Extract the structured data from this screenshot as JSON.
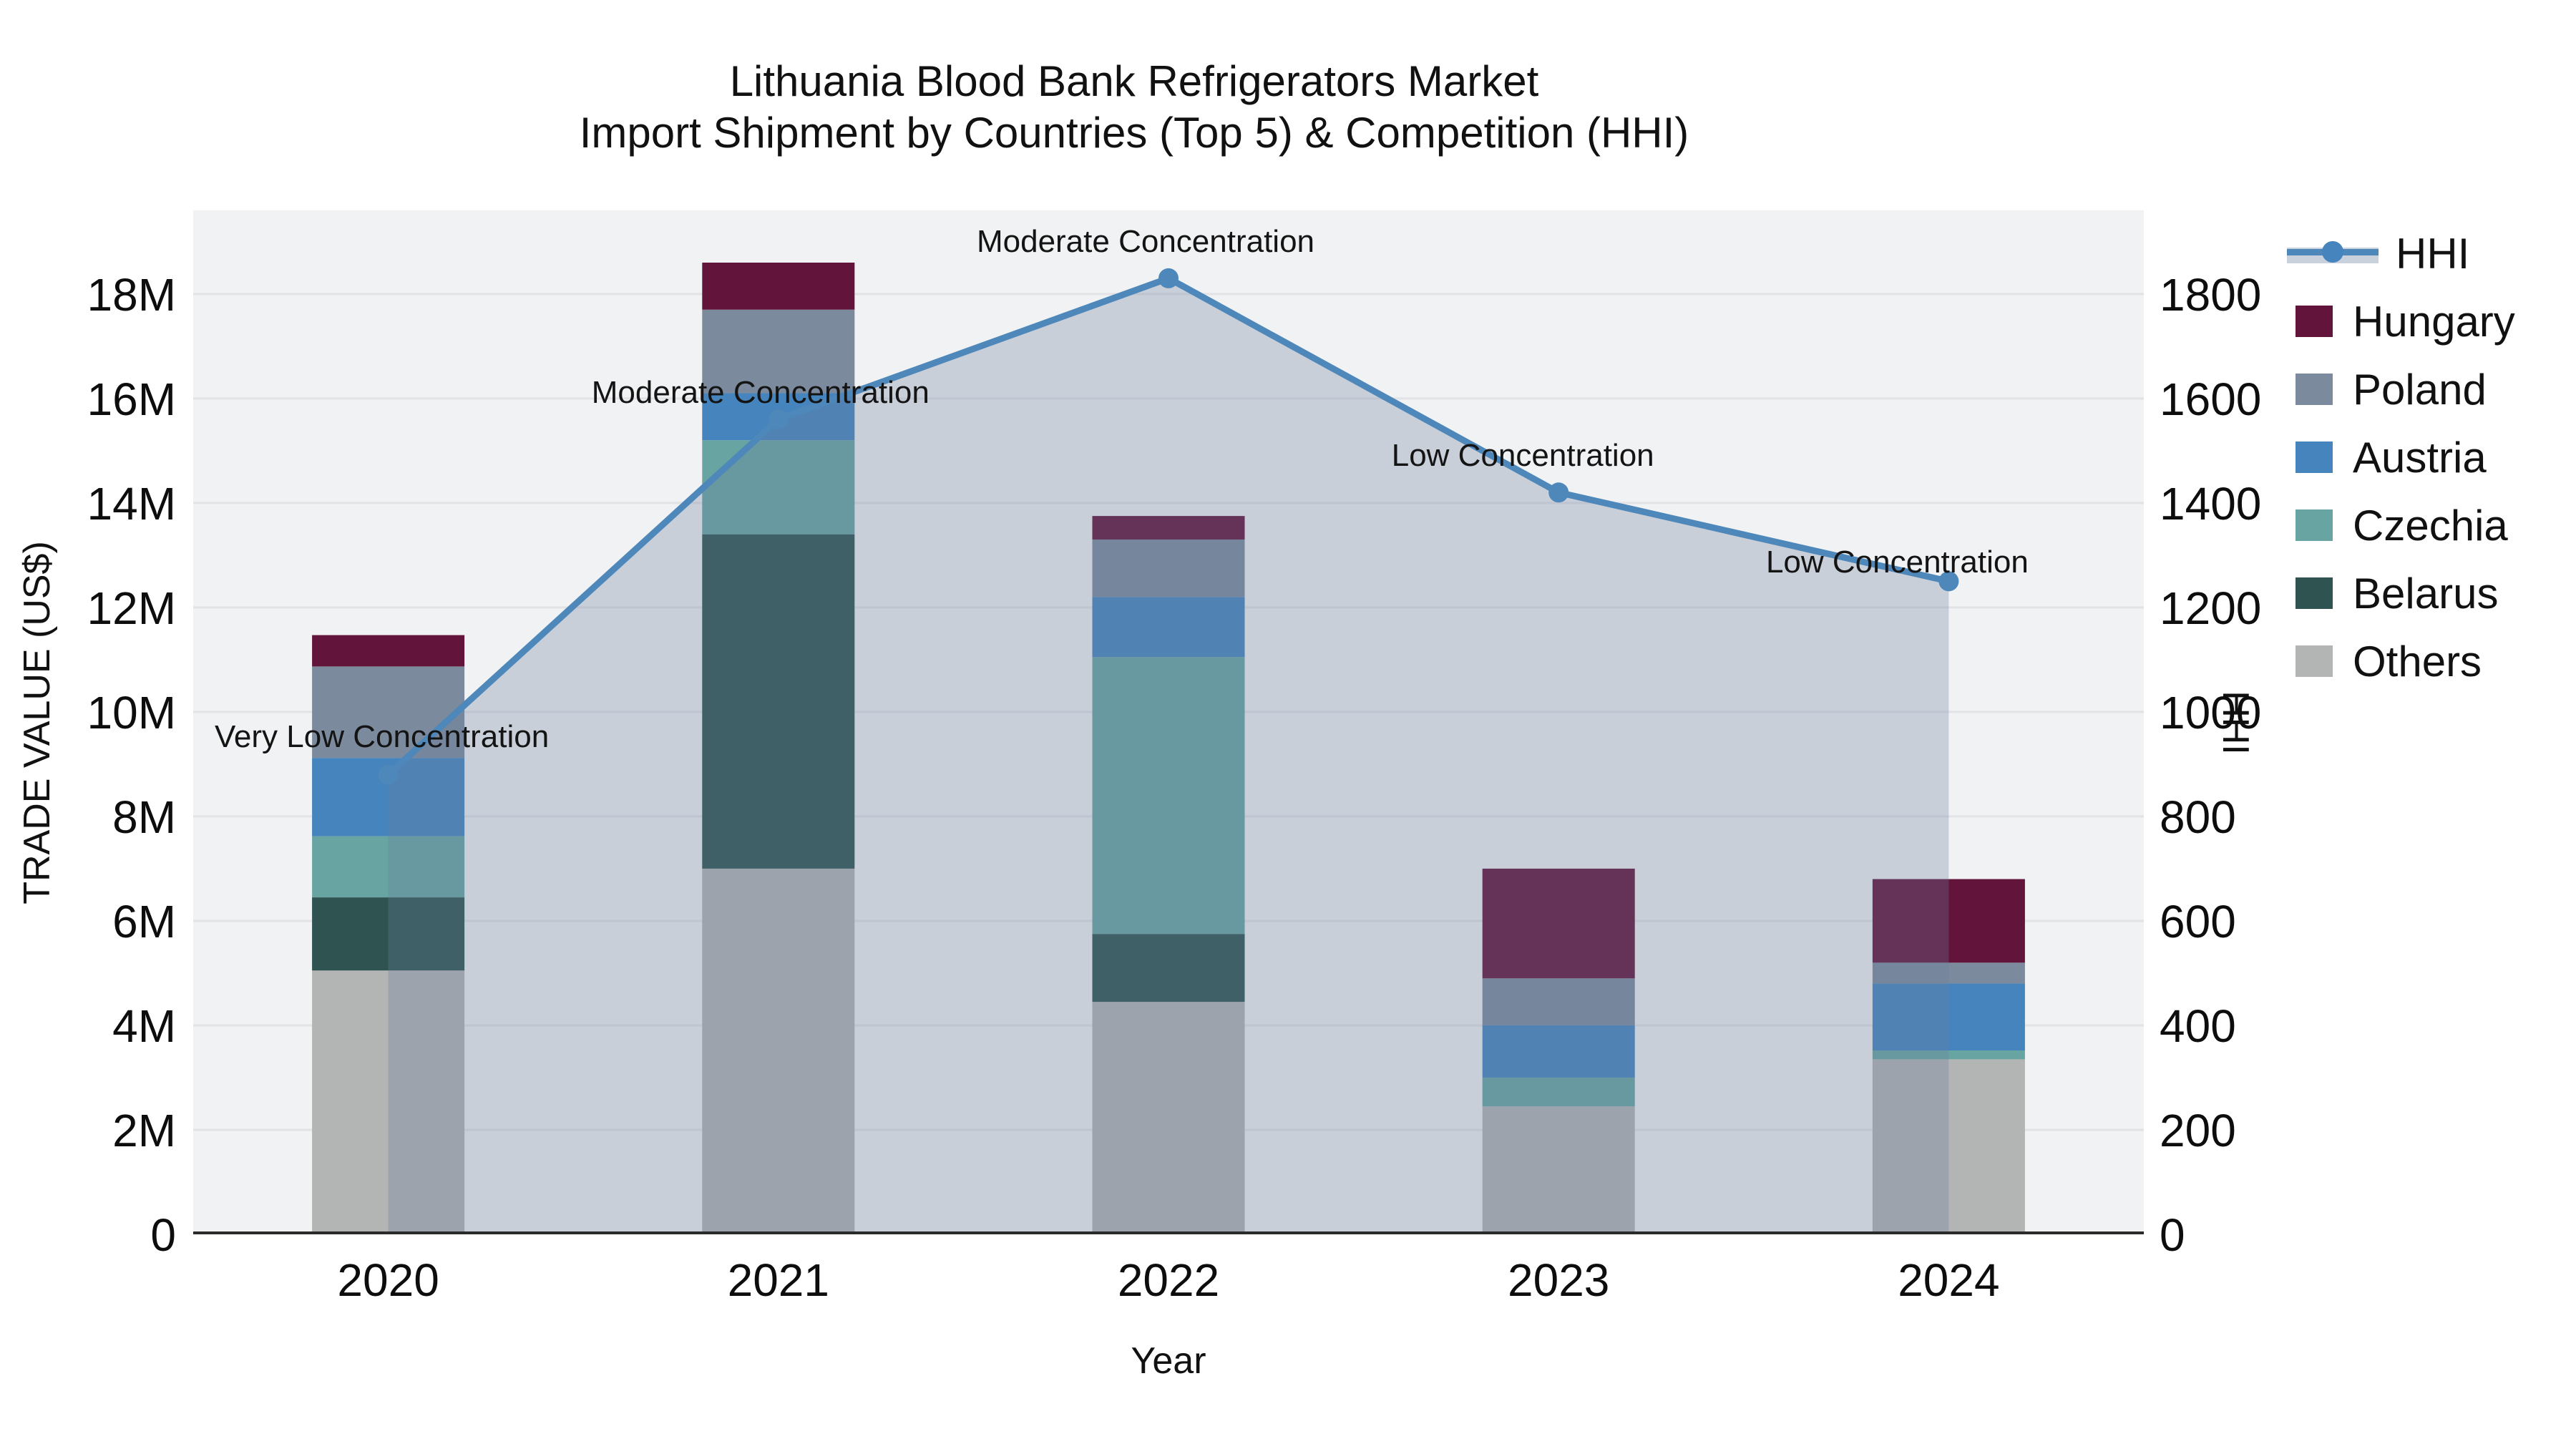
{
  "title": {
    "line1": "Lithuania Blood Bank Refrigerators Market",
    "line2": "Import Shipment by Countries (Top 5) & Competition (HHI)"
  },
  "axes": {
    "left": {
      "title": "TRADE VALUE (US$)",
      "tick_labels": [
        "0",
        "2M",
        "4M",
        "6M",
        "8M",
        "10M",
        "12M",
        "14M",
        "16M",
        "18M"
      ]
    },
    "right": {
      "title": "HHI",
      "tick_labels": [
        "0",
        "200",
        "400",
        "600",
        "800",
        "1000",
        "1200",
        "1400",
        "1600",
        "1800"
      ]
    },
    "x": {
      "title": "Year",
      "tick_labels": [
        "2020",
        "2021",
        "2022",
        "2023",
        "2024"
      ]
    }
  },
  "legend": {
    "items": [
      {
        "label": "HHI",
        "type": "line",
        "color": "#4E87BA"
      },
      {
        "label": "Hungary",
        "type": "box",
        "color": "#63143A"
      },
      {
        "label": "Poland",
        "type": "box",
        "color": "#7B8A9C"
      },
      {
        "label": "Austria",
        "type": "box",
        "color": "#4584BC"
      },
      {
        "label": "Czechia",
        "type": "box",
        "color": "#68A4A1"
      },
      {
        "label": "Belarus",
        "type": "box",
        "color": "#2E5351"
      },
      {
        "label": "Others",
        "type": "box",
        "color": "#B3B4B4"
      }
    ]
  },
  "chart_data": {
    "type": "combo: stacked-bar (left axis) + line-area (right axis)",
    "x": [
      2020,
      2021,
      2022,
      2023,
      2024
    ],
    "bar_value_unit": "US$ million",
    "stack_order_bottom_to_top": [
      "Others",
      "Belarus",
      "Czechia",
      "Austria",
      "Poland",
      "Hungary"
    ],
    "series": [
      {
        "name": "Others",
        "color": "#B3B4B4",
        "values": [
          5.05,
          7.0,
          4.45,
          2.45,
          3.35
        ]
      },
      {
        "name": "Belarus",
        "color": "#2E5351",
        "values": [
          1.4,
          6.4,
          1.3,
          0.0,
          0.0
        ]
      },
      {
        "name": "Czechia",
        "color": "#68A4A1",
        "values": [
          1.17,
          1.8,
          5.3,
          0.55,
          0.17
        ]
      },
      {
        "name": "Austria",
        "color": "#4584BC",
        "values": [
          1.5,
          0.9,
          1.15,
          1.0,
          1.28
        ]
      },
      {
        "name": "Poland",
        "color": "#7B8A9C",
        "values": [
          1.75,
          1.6,
          1.1,
          0.9,
          0.4
        ]
      },
      {
        "name": "Hungary",
        "color": "#63143A",
        "values": [
          0.6,
          0.9,
          0.45,
          2.1,
          1.6
        ]
      }
    ],
    "bar_totals": [
      11.47,
      18.6,
      13.75,
      7.0,
      6.8
    ],
    "hhi": {
      "name": "HHI",
      "values": [
        880,
        1560,
        1830,
        1420,
        1250
      ],
      "line_color": "#4E87BA",
      "area_fill": "rgba(105,125,160,0.30)"
    },
    "annotations": [
      {
        "x": 2020,
        "text": "Very Low Concentration"
      },
      {
        "x": 2021,
        "text": "Moderate Concentration"
      },
      {
        "x": 2022,
        "text": "Moderate Concentration"
      },
      {
        "x": 2023,
        "text": "Low Concentration"
      },
      {
        "x": 2024,
        "text": "Low Concentration"
      }
    ],
    "ylim_left_millions": [
      0,
      19.6
    ],
    "ylim_right_hhi": [
      0,
      1960
    ],
    "grid": "horizontal gridlines, light gray, plot background #F1F2F3",
    "legend_position": "right"
  }
}
